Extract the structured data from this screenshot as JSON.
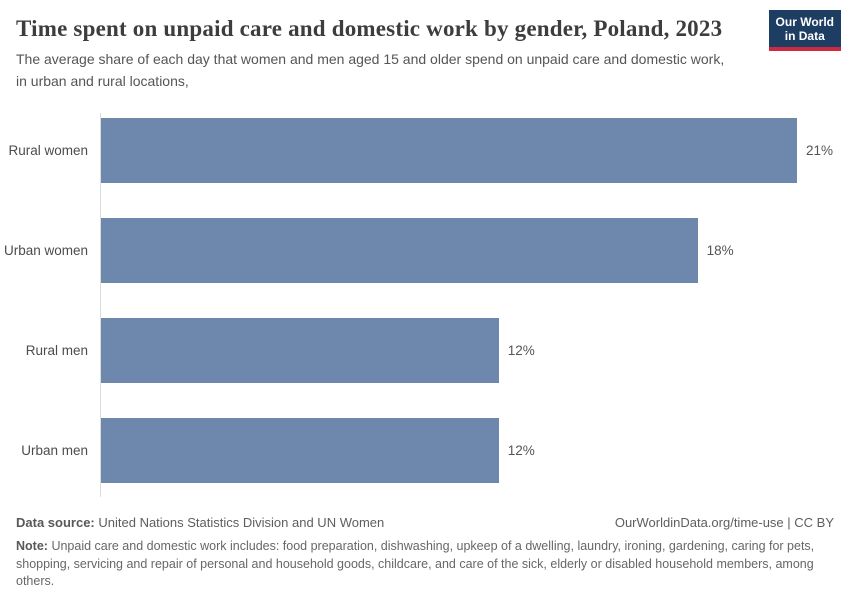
{
  "header": {
    "title": "Time spent on unpaid care and domestic work by gender, Poland, 2023",
    "subtitle": "The average share of each day that women and men aged 15 and older spend on unpaid care and domestic work, in urban and rural locations,",
    "logo": {
      "line1": "Our World",
      "line2": "in Data"
    }
  },
  "chart_data": {
    "type": "bar",
    "orientation": "horizontal",
    "title": "Time spent on unpaid care and domestic work by gender, Poland, 2023",
    "categories": [
      "Rural women",
      "Urban women",
      "Rural men",
      "Urban men"
    ],
    "values": [
      21,
      18,
      12,
      12
    ],
    "value_labels": [
      "21%",
      "18%",
      "12%",
      "12%"
    ],
    "unit": "%",
    "xlabel": "",
    "ylabel": "",
    "xlim": [
      0,
      21
    ],
    "grid": false,
    "legend": "none",
    "bar_color": "#6e87ad"
  },
  "footer": {
    "data_source_label": "Data source:",
    "data_source_text": "United Nations Statistics Division and UN Women",
    "attribution": "OurWorldinData.org/time-use | CC BY",
    "note_label": "Note:",
    "note_text": "Unpaid care and domestic work includes: food preparation, dishwashing, upkeep of a dwelling, laundry, ironing, gardening, caring for pets, shopping, servicing and repair of personal and household goods, childcare, and care of the sick, elderly or disabled household members, among others."
  },
  "colors": {
    "bar": "#6e87ad",
    "logo_bg": "#1d3d63",
    "logo_accent": "#cc2a41",
    "axis_line": "#dcdcdc",
    "title_text": "#3d3d3d",
    "body_text": "#555555"
  }
}
